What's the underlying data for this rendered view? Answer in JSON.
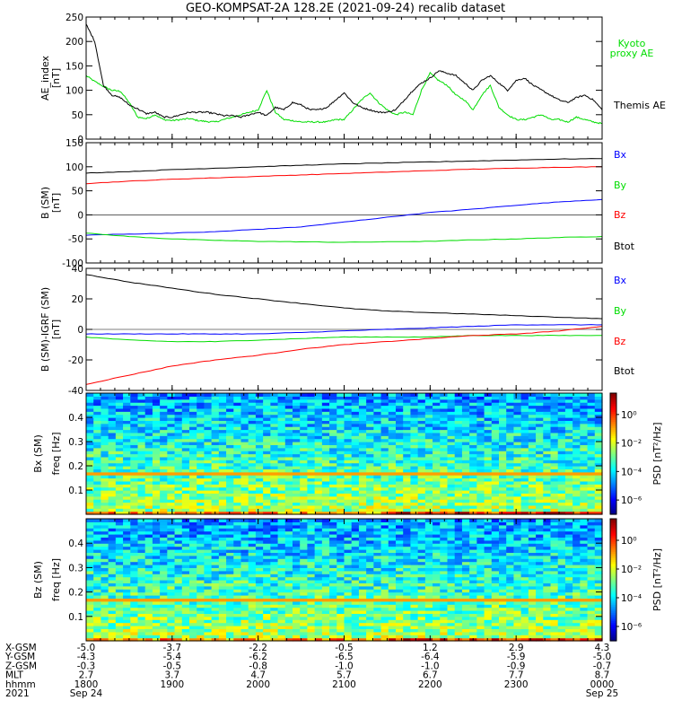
{
  "chart_data": {
    "type": "line",
    "title": "GEO-KOMPSAT-2A 128.2E (2021-09-24) recalib dataset",
    "colors": {
      "black": "#000000",
      "blue": "#0000ff",
      "green": "#00dd00",
      "red": "#ff0000"
    },
    "panels": [
      {
        "type": "line",
        "ylabel": "AE_index",
        "yunit": "[nT]",
        "ylim": [
          0,
          250
        ],
        "yticks": [
          "0",
          "50",
          "100",
          "150",
          "200",
          "250"
        ],
        "yticks_values": [
          0,
          50,
          100,
          150,
          200,
          250
        ],
        "x_hours": [
          18.0,
          18.1,
          18.2,
          18.3,
          18.4,
          18.5,
          18.6,
          18.7,
          18.8,
          18.9,
          19.0,
          19.1,
          19.2,
          19.3,
          19.4,
          19.5,
          19.6,
          19.7,
          19.8,
          19.9,
          20.0,
          20.1,
          20.2,
          20.3,
          20.4,
          20.5,
          20.6,
          20.7,
          20.8,
          20.9,
          21.0,
          21.1,
          21.2,
          21.3,
          21.4,
          21.5,
          21.6,
          21.7,
          21.8,
          21.9,
          22.0,
          22.1,
          22.2,
          22.3,
          22.4,
          22.5,
          22.6,
          22.7,
          22.8,
          22.9,
          23.0,
          23.1,
          23.2,
          23.3,
          23.4,
          23.5,
          23.6,
          23.7,
          23.8,
          23.9,
          24.0
        ],
        "series": [
          {
            "name": "Kyoto proxy AE",
            "color": "#00dd00",
            "values": [
              130,
              118,
              108,
              100,
              98,
              75,
              45,
              42,
              50,
              40,
              38,
              40,
              42,
              38,
              36,
              35,
              40,
              45,
              50,
              55,
              60,
              100,
              55,
              40,
              38,
              35,
              35,
              35,
              35,
              40,
              40,
              60,
              80,
              95,
              75,
              60,
              50,
              55,
              50,
              100,
              135,
              120,
              110,
              90,
              80,
              60,
              90,
              110,
              65,
              50,
              40,
              40,
              45,
              50,
              40,
              40,
              35,
              45,
              40,
              35,
              32
            ]
          },
          {
            "name": "Themis AE",
            "color": "#000000",
            "values": [
              235,
              200,
              110,
              90,
              85,
              70,
              62,
              52,
              55,
              45,
              45,
              50,
              55,
              55,
              55,
              52,
              48,
              48,
              45,
              50,
              55,
              48,
              65,
              60,
              75,
              70,
              60,
              60,
              65,
              80,
              95,
              75,
              65,
              60,
              55,
              55,
              60,
              80,
              100,
              115,
              125,
              140,
              135,
              130,
              115,
              100,
              120,
              130,
              115,
              100,
              120,
              125,
              110,
              100,
              90,
              80,
              75,
              85,
              90,
              80,
              60
            ]
          }
        ]
      },
      {
        "type": "line",
        "ylabel": "B (SM)",
        "yunit": "[nT]",
        "ylim": [
          -100,
          150
        ],
        "yticks": [
          "-100",
          "-50",
          "0",
          "50",
          "100",
          "150"
        ],
        "yticks_values": [
          -100,
          -50,
          0,
          50,
          100,
          150
        ],
        "x_hours": [
          18.0,
          18.5,
          19.0,
          19.5,
          20.0,
          20.5,
          21.0,
          21.5,
          22.0,
          22.5,
          23.0,
          23.5,
          24.0
        ],
        "series": [
          {
            "name": "Bx",
            "color": "#0000ff",
            "values": [
              -42,
              -40,
              -38,
              -35,
              -30,
              -25,
              -15,
              -5,
              5,
              12,
              20,
              27,
              32
            ]
          },
          {
            "name": "By",
            "color": "#00dd00",
            "values": [
              -38,
              -45,
              -50,
              -53,
              -55,
              -56,
              -57,
              -56,
              -55,
              -52,
              -50,
              -47,
              -45
            ]
          },
          {
            "name": "Bz",
            "color": "#ff0000",
            "values": [
              65,
              70,
              74,
              77,
              80,
              83,
              86,
              89,
              92,
              95,
              97,
              99,
              100
            ]
          },
          {
            "name": "Btot",
            "color": "#000000",
            "values": [
              87,
              90,
              94,
              97,
              100,
              103,
              106,
              108,
              110,
              112,
              114,
              116,
              117
            ]
          }
        ]
      },
      {
        "type": "line",
        "ylabel": "B (SM)-IGRF (SM)",
        "yunit": "[nT]",
        "ylim": [
          -40,
          40
        ],
        "yticks": [
          "-40",
          "-20",
          "0",
          "20",
          "40"
        ],
        "yticks_values": [
          -40,
          -20,
          0,
          20,
          40
        ],
        "x_hours": [
          18.0,
          18.5,
          19.0,
          19.5,
          20.0,
          20.5,
          21.0,
          21.5,
          22.0,
          22.5,
          23.0,
          23.5,
          24.0
        ],
        "series": [
          {
            "name": "Bx",
            "color": "#0000ff",
            "values": [
              -3,
              -3,
              -3,
              -3,
              -3,
              -2,
              -1,
              0,
              1,
              2,
              3,
              3,
              3
            ]
          },
          {
            "name": "By",
            "color": "#00dd00",
            "values": [
              -5,
              -7,
              -8,
              -8,
              -7,
              -6,
              -5,
              -5,
              -5,
              -4,
              -4,
              -4,
              -4
            ]
          },
          {
            "name": "Bz",
            "color": "#ff0000",
            "values": [
              -36,
              -30,
              -24,
              -20,
              -17,
              -13,
              -10,
              -8,
              -6,
              -4,
              -3,
              -1,
              2
            ]
          },
          {
            "name": "Btot",
            "color": "#000000",
            "values": [
              36,
              31,
              27,
              23,
              20,
              17,
              14,
              12,
              11,
              10,
              9,
              8,
              7
            ]
          }
        ]
      },
      {
        "type": "heatmap",
        "ylabel": "Bx (SM)",
        "ysublabel": "freq",
        "yunit": "[Hz]",
        "ylim": [
          0,
          0.5
        ],
        "yticks": [
          "0.1",
          "0.2",
          "0.3",
          "0.4"
        ],
        "yticks_values": [
          0.1,
          0.2,
          0.3,
          0.4
        ],
        "cbar_label": "PSD [nT²/Hz]",
        "cbar_ticks": [
          "10⁰",
          "10⁻²",
          "10⁻⁴",
          "10⁻⁶"
        ],
        "cbar_ticks_values": [
          0,
          -2,
          -4,
          -6
        ],
        "cbar_range_log": [
          -7,
          1.5
        ]
      },
      {
        "type": "heatmap",
        "ylabel": "Bz (SM)",
        "ysublabel": "freq",
        "yunit": "[Hz]",
        "ylim": [
          0,
          0.5
        ],
        "yticks": [
          "0.1",
          "0.2",
          "0.3",
          "0.4"
        ],
        "yticks_values": [
          0.1,
          0.2,
          0.3,
          0.4
        ],
        "cbar_label": "PSD [nT²/Hz]",
        "cbar_ticks": [
          "10⁰",
          "10⁻²",
          "10⁻⁴",
          "10⁻⁶"
        ],
        "cbar_ticks_values": [
          0,
          -2,
          -4,
          -6
        ],
        "cbar_range_log": [
          -7,
          1.5
        ]
      }
    ],
    "x_axis": {
      "xlim_hours": [
        18,
        24
      ],
      "tick_hours": [
        18,
        19,
        20,
        21,
        22,
        23,
        24
      ],
      "row_labels": [
        "X-GSM",
        "Y-GSM",
        "Z-GSM",
        "MLT",
        "hhmm",
        "2021"
      ],
      "rows": [
        [
          "-5.0",
          "-3.7",
          "-2.2",
          "-0.5",
          "1.2",
          "2.9",
          "4.3"
        ],
        [
          "-4.3",
          "-5.4",
          "-6.2",
          "-6.5",
          "-6.4",
          "-5.9",
          "-5.0"
        ],
        [
          "-0.3",
          "-0.5",
          "-0.8",
          "-1.0",
          "-1.0",
          "-0.9",
          "-0.7"
        ],
        [
          "2.7",
          "3.7",
          "4.7",
          "5.7",
          "6.7",
          "7.7",
          "8.7"
        ],
        [
          "1800",
          "1900",
          "2000",
          "2100",
          "2200",
          "2300",
          "0000"
        ],
        [
          "Sep 24",
          "",
          "",
          "",
          "",
          "",
          "Sep 25"
        ]
      ]
    }
  }
}
